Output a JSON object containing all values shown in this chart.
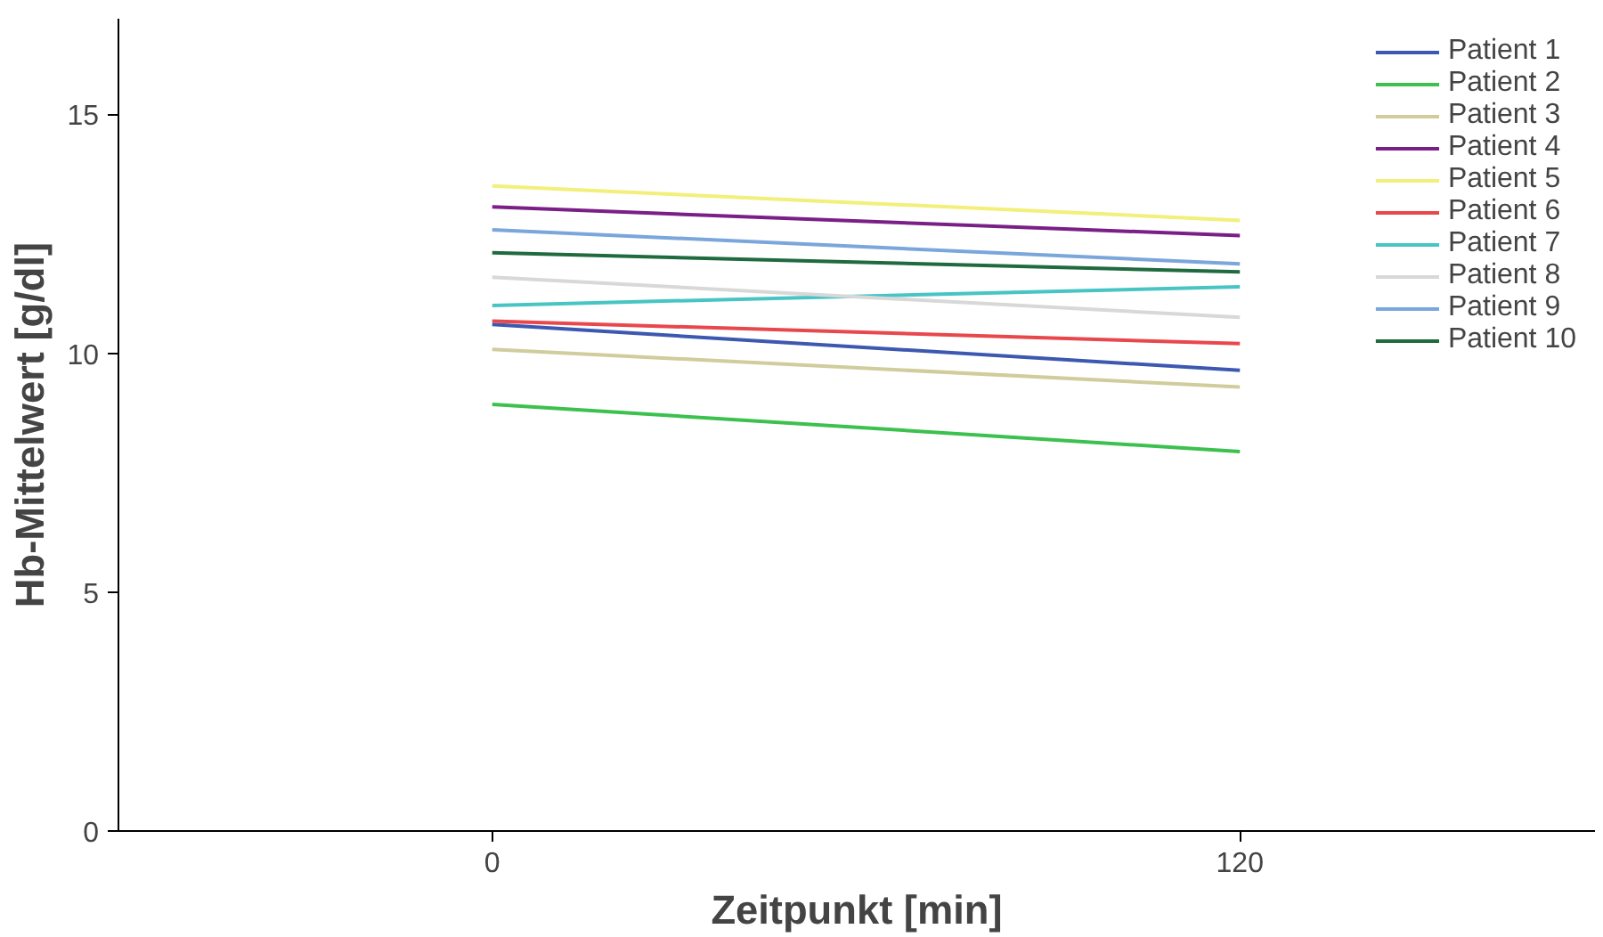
{
  "chart_data": {
    "type": "line",
    "xlabel": "Zeitpunkt [min]",
    "ylabel": "Hb-Mittelwert [g/dl]",
    "x": [
      0,
      120
    ],
    "xlim": [
      -60,
      177
    ],
    "ylim": [
      0,
      17
    ],
    "xticks": [
      0,
      120
    ],
    "yticks": [
      0,
      5,
      10,
      15
    ],
    "grid": false,
    "legend": "top right",
    "marker": "none",
    "line_style": "solid",
    "series": [
      {
        "name": "Patient 1",
        "color": "#3c58b0",
        "values": [
          10.6,
          9.64
        ]
      },
      {
        "name": "Patient 2",
        "color": "#3cc04e",
        "values": [
          8.93,
          7.94
        ]
      },
      {
        "name": "Patient 3",
        "color": "#d0cc9c",
        "values": [
          10.08,
          9.29
        ]
      },
      {
        "name": "Patient 4",
        "color": "#7a1f86",
        "values": [
          13.06,
          12.46
        ]
      },
      {
        "name": "Patient 5",
        "color": "#f2ef7a",
        "values": [
          13.5,
          12.78
        ]
      },
      {
        "name": "Patient 6",
        "color": "#e8474c",
        "values": [
          10.67,
          10.2
        ]
      },
      {
        "name": "Patient 7",
        "color": "#48c4c4",
        "values": [
          11.0,
          11.39
        ]
      },
      {
        "name": "Patient 8",
        "color": "#d8d8d8",
        "values": [
          11.59,
          10.75
        ]
      },
      {
        "name": "Patient 9",
        "color": "#7aa6dc",
        "values": [
          12.58,
          11.87
        ]
      },
      {
        "name": "Patient 10",
        "color": "#1f6a3e",
        "values": [
          12.1,
          11.7
        ]
      }
    ]
  }
}
